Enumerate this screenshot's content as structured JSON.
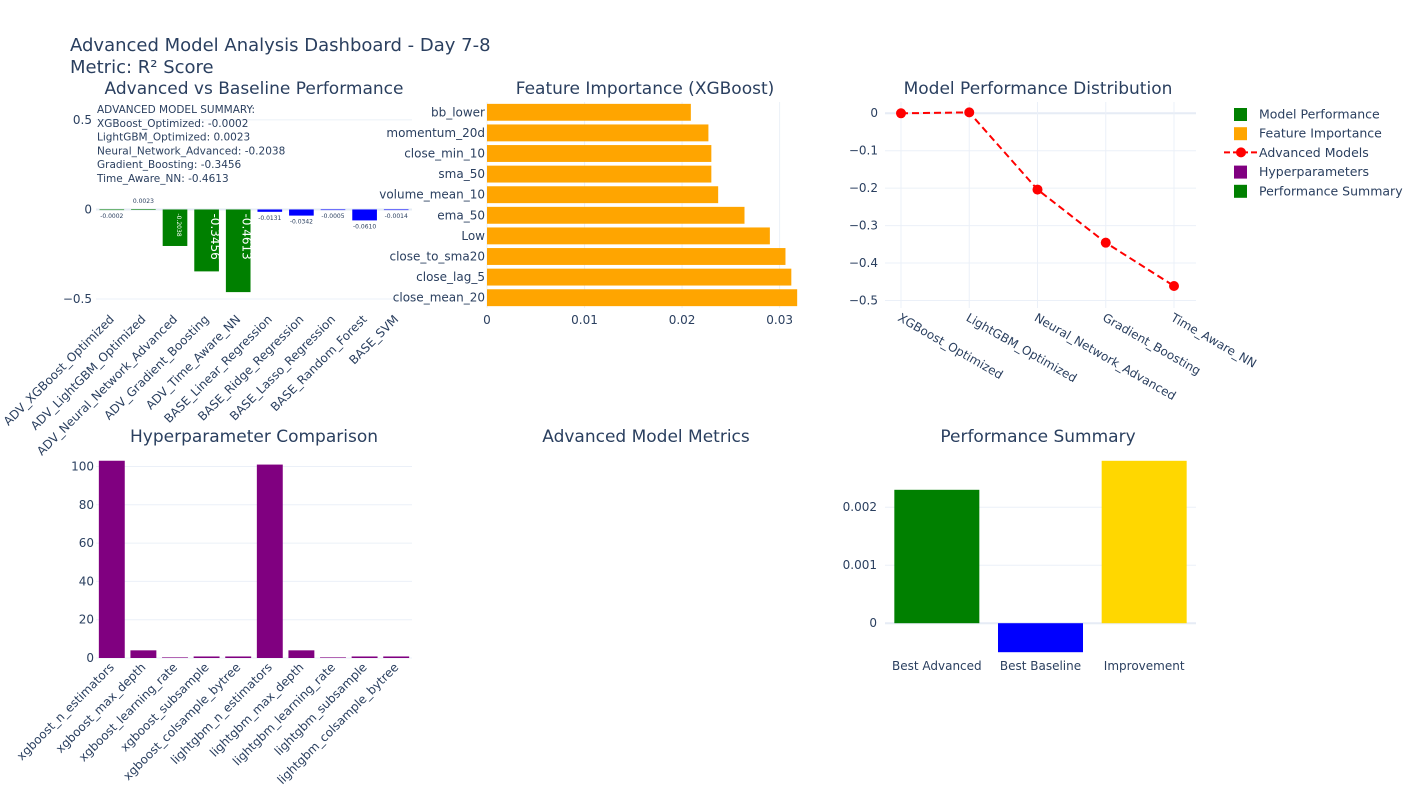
{
  "header": {
    "title": "Advanced Model Analysis Dashboard - Day 7-8",
    "subtitle": "Metric: R² Score"
  },
  "legend": {
    "placement": "top-right",
    "items": [
      {
        "label": "Model Performance",
        "color": "#008000",
        "symbol": "square"
      },
      {
        "label": "Feature Importance",
        "color": "#FFA500",
        "symbol": "square"
      },
      {
        "label": "Advanced Models",
        "color": "#FF0000",
        "symbol": "line-marker"
      },
      {
        "label": "Hyperparameters",
        "color": "#800080",
        "symbol": "square"
      },
      {
        "label": "Performance Summary",
        "color": "#008000",
        "symbol": "square"
      }
    ]
  },
  "annotation": {
    "lines": [
      "ADVANCED MODEL SUMMARY:",
      "XGBoost_Optimized: -0.0002",
      "LightGBM_Optimized: 0.0023",
      "Neural_Network_Advanced: -0.2038",
      "Gradient_Boosting: -0.3456",
      "Time_Aware_NN: -0.4613"
    ]
  },
  "colors": {
    "advanced": "#008000",
    "baseline": "#0000FF",
    "feature": "#FFA500",
    "line": "#FF0000",
    "hyper": "#800080",
    "improvement": "#FFD700",
    "grid": "#EBF0F8",
    "text": "#2A3F5F"
  },
  "chart_data": [
    {
      "id": "perf",
      "type": "bar",
      "title": "Advanced vs Baseline Performance",
      "categories": [
        "ADV_XGBoost_Optimized",
        "ADV_LightGBM_Optimized",
        "ADV_Neural_Network_Advanced",
        "ADV_Gradient_Boosting",
        "ADV_Time_Aware_NN",
        "BASE_Linear_Regression",
        "BASE_Ridge_Regression",
        "BASE_Lasso_Regression",
        "BASE_Random_Forest",
        "BASE_SVM"
      ],
      "values": [
        -0.0002,
        0.0023,
        -0.2038,
        -0.3456,
        -0.4613,
        -0.0131,
        -0.0342,
        -0.0005,
        -0.061,
        -0.0014
      ],
      "labels": [
        "-0.0002",
        "0.0023",
        "-0.2038",
        "-0.3456",
        "-0.4613",
        "-0.0131",
        "-0.0342",
        "-0.0005",
        "-0.0610",
        "-0.0014"
      ],
      "ytick_labels": [
        "0.5",
        "0",
        "−0.5"
      ],
      "yticks": [
        0.5,
        0,
        -0.5
      ],
      "ylim": [
        -0.55,
        0.6
      ],
      "grid": true
    },
    {
      "id": "feat",
      "type": "bar",
      "orientation": "horizontal",
      "title": "Feature Importance (XGBoost)",
      "categories": [
        "bb_lower",
        "momentum_20d",
        "close_min_10",
        "sma_50",
        "volume_mean_10",
        "ema_50",
        "Low",
        "close_to_sma20",
        "close_lag_5",
        "close_mean_20"
      ],
      "values": [
        0.0209,
        0.0227,
        0.023,
        0.023,
        0.0237,
        0.0264,
        0.029,
        0.0306,
        0.0312,
        0.0318
      ],
      "xtick_labels": [
        "0",
        "0.01",
        "0.02",
        "0.03"
      ],
      "xticks": [
        0,
        0.01,
        0.02,
        0.03
      ],
      "xlim": [
        0,
        0.0325
      ],
      "grid": true
    },
    {
      "id": "dist",
      "type": "line",
      "title": "Model Performance Distribution",
      "categories": [
        "XGBoost_Optimized",
        "LightGBM_Optimized",
        "Neural_Network_Advanced",
        "Gradient_Boosting",
        "Time_Aware_NN"
      ],
      "values": [
        -0.0002,
        0.0023,
        -0.2038,
        -0.3456,
        -0.4613
      ],
      "ytick_labels": [
        "0",
        "−0.1",
        "−0.2",
        "−0.3",
        "−0.4",
        "−0.5"
      ],
      "yticks": [
        0,
        -0.1,
        -0.2,
        -0.3,
        -0.4,
        -0.5
      ],
      "ylim": [
        -0.52,
        0.03
      ],
      "line_style": "dashed",
      "grid": true
    },
    {
      "id": "hyper",
      "type": "bar",
      "title": "Hyperparameter Comparison",
      "categories": [
        "xgboost_n_estimators",
        "xgboost_max_depth",
        "xgboost_learning_rate",
        "xgboost_subsample",
        "xgboost_colsample_bytree",
        "lightgbm_n_estimators",
        "lightgbm_max_depth",
        "lightgbm_learning_rate",
        "lightgbm_subsample",
        "lightgbm_colsample_bytree"
      ],
      "values": [
        103,
        4,
        0.05,
        0.8,
        0.8,
        101,
        4,
        0.05,
        0.8,
        0.8
      ],
      "ytick_labels": [
        "0",
        "20",
        "40",
        "60",
        "80",
        "100"
      ],
      "yticks": [
        0,
        20,
        40,
        60,
        80,
        100
      ],
      "ylim": [
        0,
        106
      ],
      "grid": true
    },
    {
      "id": "metrics",
      "type": "table",
      "title": "Advanced Model Metrics"
    },
    {
      "id": "summary",
      "type": "bar",
      "title": "Performance Summary",
      "categories": [
        "Best Advanced",
        "Best Baseline",
        "Improvement"
      ],
      "values": [
        0.0023,
        -0.0005,
        0.0028
      ],
      "ytick_labels": [
        "0",
        "0.001",
        "0.002"
      ],
      "yticks": [
        0,
        0.001,
        0.002
      ],
      "ylim": [
        -0.0006,
        0.0029
      ],
      "grid": true
    }
  ]
}
